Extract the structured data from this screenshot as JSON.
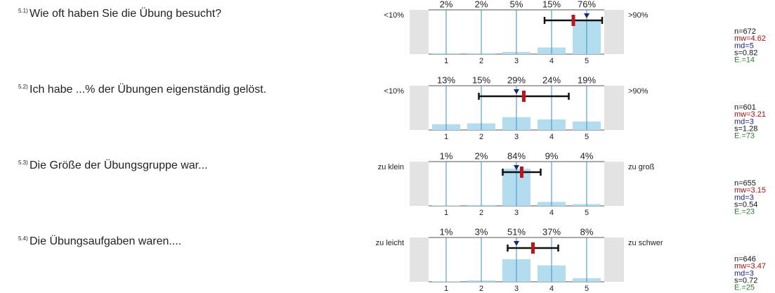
{
  "chart_data": [
    {
      "type": "bar",
      "number": "5.1)",
      "question": "Wie oft haben Sie die Übung besucht?",
      "left_label": "<10%",
      "right_label": ">90%",
      "categories": [
        "1",
        "2",
        "3",
        "4",
        "5"
      ],
      "values": [
        2,
        2,
        5,
        15,
        76
      ],
      "value_labels": [
        "2%",
        "2%",
        "5%",
        "15%",
        "76%"
      ],
      "ylim": [
        0,
        100
      ],
      "stats": {
        "n": {
          "value": 672,
          "label": "n=672"
        },
        "mw": {
          "value": 4.62,
          "label": "mw=4.62"
        },
        "md": {
          "value": 5,
          "label": "md=5"
        },
        "s": {
          "value": 0.82,
          "label": "s=0.82"
        },
        "E": {
          "value": 14,
          "label": "E.=14"
        }
      }
    },
    {
      "type": "bar",
      "number": "5.2)",
      "question": "Ich habe ...% der Übungen eigenständig gelöst.",
      "left_label": "<10%",
      "right_label": ">90%",
      "categories": [
        "1",
        "2",
        "3",
        "4",
        "5"
      ],
      "values": [
        13,
        15,
        29,
        24,
        19
      ],
      "value_labels": [
        "13%",
        "15%",
        "29%",
        "24%",
        "19%"
      ],
      "ylim": [
        0,
        100
      ],
      "stats": {
        "n": {
          "value": 601,
          "label": "n=601"
        },
        "mw": {
          "value": 3.21,
          "label": "mw=3.21"
        },
        "md": {
          "value": 3,
          "label": "md=3"
        },
        "s": {
          "value": 1.28,
          "label": "s=1.28"
        },
        "E": {
          "value": 73,
          "label": "E.=73"
        }
      }
    },
    {
      "type": "bar",
      "number": "5.3)",
      "question": "Die Größe der Übungsgruppe war...",
      "left_label": "zu klein",
      "right_label": "zu groß",
      "categories": [
        "1",
        "2",
        "3",
        "4",
        "5"
      ],
      "values": [
        1,
        2,
        84,
        9,
        4
      ],
      "value_labels": [
        "1%",
        "2%",
        "84%",
        "9%",
        "4%"
      ],
      "ylim": [
        0,
        100
      ],
      "stats": {
        "n": {
          "value": 655,
          "label": "n=655"
        },
        "mw": {
          "value": 3.15,
          "label": "mw=3.15"
        },
        "md": {
          "value": 3,
          "label": "md=3"
        },
        "s": {
          "value": 0.54,
          "label": "s=0.54"
        },
        "E": {
          "value": 23,
          "label": "E.=23"
        }
      }
    },
    {
      "type": "bar",
      "number": "5.4)",
      "question": "Die Übungsaufgaben waren....",
      "left_label": "zu leicht",
      "right_label": "zu schwer",
      "categories": [
        "1",
        "2",
        "3",
        "4",
        "5"
      ],
      "values": [
        1,
        3,
        51,
        37,
        8
      ],
      "value_labels": [
        "1%",
        "3%",
        "51%",
        "37%",
        "8%"
      ],
      "ylim": [
        0,
        100
      ],
      "stats": {
        "n": {
          "value": 646,
          "label": "n=646"
        },
        "mw": {
          "value": 3.47,
          "label": "mw=3.47"
        },
        "md": {
          "value": 3,
          "label": "md=3"
        },
        "s": {
          "value": 0.72,
          "label": "s=0.72"
        },
        "E": {
          "value": 25,
          "label": "E.=25"
        }
      }
    }
  ]
}
